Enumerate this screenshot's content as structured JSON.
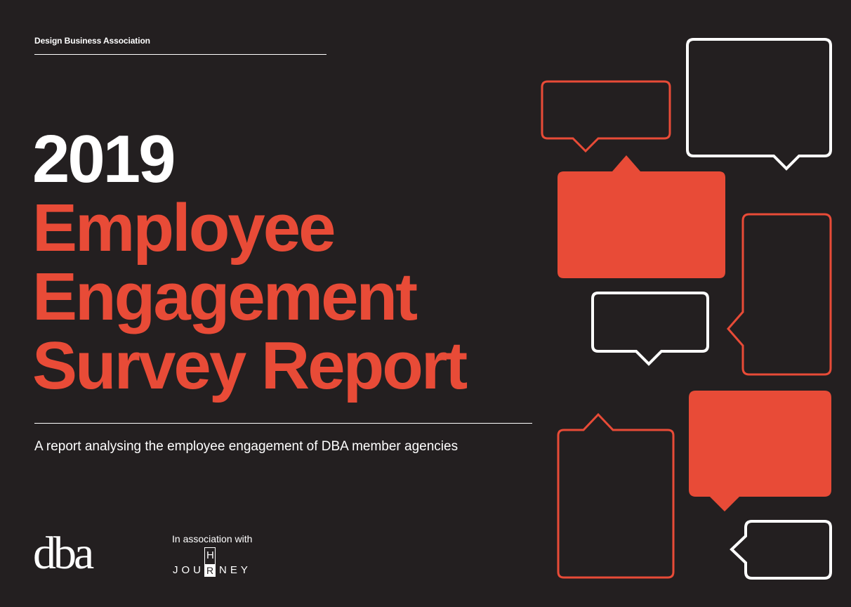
{
  "header": {
    "org_name": "Design Business Association"
  },
  "title": {
    "year": "2019",
    "line1": "Employee",
    "line2": "Engagement",
    "line3": "Survey Report"
  },
  "subtitle": "A report analysing the employee engagement of DBA member agencies",
  "footer": {
    "logo_text": "dba",
    "association_text": "In association with",
    "partner_logo": {
      "part1": "JOU",
      "h": "H",
      "r": "R",
      "part2": "NEY"
    }
  },
  "colors": {
    "background": "#231f20",
    "accent": "#e84b37",
    "text": "#ffffff"
  }
}
